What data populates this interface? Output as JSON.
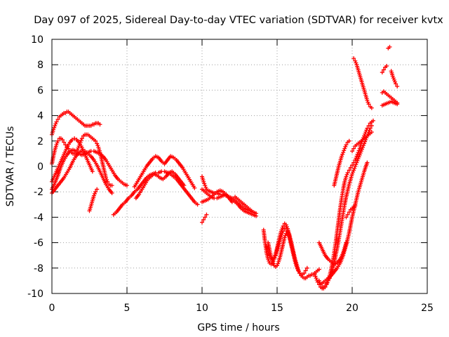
{
  "chart_data": {
    "type": "scatter",
    "title": "Day 097 of 2025, Sidereal Day-to-day VTEC variation (SDTVAR) for receiver kvtx",
    "xlabel": "GPS time / hours",
    "ylabel": "SDTVAR / TECUs",
    "xlim": [
      0,
      25
    ],
    "ylim": [
      -10,
      10
    ],
    "xticks": [
      0,
      5,
      10,
      15,
      20,
      25
    ],
    "yticks": [
      -10,
      -8,
      -6,
      -4,
      -2,
      0,
      2,
      4,
      6,
      8,
      10
    ],
    "grid": true,
    "marker": "+",
    "color": "#ff0000",
    "series": [
      {
        "x": [
          0.0,
          0.1,
          0.2,
          0.3,
          0.4,
          0.5,
          0.6,
          0.7,
          0.8,
          0.9,
          1.0,
          1.1,
          1.2,
          1.3,
          1.4,
          1.5,
          1.6,
          1.7,
          1.8,
          1.9,
          2.0,
          2.1,
          2.2,
          2.3,
          2.4,
          2.5,
          2.6,
          2.7,
          2.8,
          2.9,
          3.0,
          3.1,
          3.2
        ],
        "y": [
          2.5,
          2.9,
          3.2,
          3.5,
          3.7,
          3.9,
          4.0,
          4.1,
          4.2,
          4.2,
          4.3,
          4.3,
          4.2,
          4.1,
          4.0,
          3.9,
          3.8,
          3.7,
          3.6,
          3.5,
          3.4,
          3.3,
          3.2,
          3.2,
          3.2,
          3.2,
          3.2,
          3.3,
          3.3,
          3.4,
          3.4,
          3.4,
          3.3
        ]
      },
      {
        "x": [
          0.0,
          0.1,
          0.2,
          0.3,
          0.4,
          0.5,
          0.6,
          0.7,
          0.8,
          0.9,
          1.0,
          1.1,
          1.2,
          1.3,
          1.4,
          1.5,
          1.6,
          1.7,
          1.8,
          1.9,
          2.0,
          2.1,
          2.2,
          2.3,
          2.4,
          2.5,
          2.6,
          2.7,
          2.8,
          2.9,
          3.0,
          3.1,
          3.2,
          3.3,
          3.4,
          3.5,
          3.6,
          3.7,
          3.8,
          3.9,
          4.0
        ],
        "y": [
          0.2,
          0.8,
          1.3,
          1.7,
          2.0,
          2.2,
          2.2,
          2.1,
          1.9,
          1.7,
          1.5,
          1.4,
          1.2,
          1.1,
          1.0,
          1.0,
          1.1,
          1.3,
          1.6,
          1.9,
          2.2,
          2.4,
          2.5,
          2.5,
          2.5,
          2.4,
          2.3,
          2.2,
          2.1,
          2.0,
          1.8,
          1.5,
          1.1,
          0.6,
          0.1,
          -0.4,
          -0.9,
          -1.2,
          -1.4,
          -1.5,
          -1.5
        ]
      },
      {
        "x": [
          0.0,
          0.2,
          0.4,
          0.6,
          0.8,
          1.0,
          1.2,
          1.4,
          1.6,
          1.8,
          2.0,
          2.2,
          2.4,
          2.6,
          2.8,
          3.0,
          3.2,
          3.4,
          3.6,
          3.8,
          4.0,
          4.2,
          4.4,
          4.6,
          4.8,
          5.0
        ],
        "y": [
          -1.8,
          -1.3,
          -0.7,
          0.0,
          0.5,
          0.9,
          1.2,
          1.3,
          1.2,
          1.0,
          0.9,
          1.0,
          1.1,
          1.2,
          1.2,
          1.1,
          1.0,
          0.8,
          0.5,
          0.1,
          -0.3,
          -0.7,
          -1.0,
          -1.2,
          -1.4,
          -1.5
        ]
      },
      {
        "x": [
          0.0,
          0.2,
          0.4,
          0.6,
          0.8,
          1.0,
          1.2,
          1.4,
          1.6,
          1.8,
          2.0,
          2.2,
          2.4,
          2.6,
          2.8,
          3.0,
          3.2,
          3.4,
          3.6,
          3.8,
          4.0
        ],
        "y": [
          -2.1,
          -1.8,
          -1.5,
          -1.2,
          -0.9,
          -0.5,
          -0.1,
          0.4,
          0.8,
          1.1,
          1.2,
          1.2,
          1.0,
          0.8,
          0.5,
          0.1,
          -0.4,
          -0.9,
          -1.4,
          -1.8,
          -2.1
        ]
      },
      {
        "x": [
          2.5,
          2.6,
          2.7,
          2.8,
          2.9,
          3.0
        ],
        "y": [
          -3.5,
          -3.1,
          -2.7,
          -2.3,
          -2.0,
          -1.8
        ]
      },
      {
        "x": [
          0.0,
          0.15,
          0.3,
          0.45,
          0.6,
          0.75,
          0.9,
          1.05,
          1.2,
          1.35,
          1.5,
          1.65,
          1.8,
          1.95,
          2.1,
          2.25,
          2.4,
          2.55,
          2.7
        ],
        "y": [
          -1.2,
          -0.8,
          -0.4,
          0.0,
          0.4,
          0.8,
          1.2,
          1.6,
          1.9,
          2.1,
          2.2,
          2.1,
          1.9,
          1.6,
          1.2,
          0.8,
          0.4,
          0.0,
          -0.4
        ]
      },
      {
        "x": [
          4.1,
          4.3,
          4.5,
          4.7,
          4.9,
          5.1,
          5.3,
          5.5,
          5.7,
          5.9,
          6.1,
          6.3,
          6.5,
          6.7,
          6.9,
          7.1,
          7.3,
          7.5,
          7.7,
          7.9,
          8.1,
          8.3,
          8.5,
          8.7,
          8.9,
          9.1,
          9.3,
          9.5,
          9.7
        ],
        "y": [
          -3.8,
          -3.6,
          -3.3,
          -3.0,
          -2.8,
          -2.5,
          -2.3,
          -2.0,
          -1.8,
          -1.5,
          -1.2,
          -0.9,
          -0.7,
          -0.6,
          -0.5,
          -0.5,
          -0.4,
          -0.4,
          -0.5,
          -0.6,
          -0.8,
          -1.0,
          -1.3,
          -1.6,
          -1.9,
          -2.2,
          -2.5,
          -2.8,
          -3.0
        ]
      },
      {
        "x": [
          5.5,
          5.7,
          5.9,
          6.1,
          6.3,
          6.5,
          6.7,
          6.9,
          7.1,
          7.3,
          7.5,
          7.7,
          7.9,
          8.1,
          8.3,
          8.5,
          8.7,
          8.9,
          9.1,
          9.3,
          9.5
        ],
        "y": [
          -1.6,
          -1.2,
          -0.8,
          -0.4,
          0.0,
          0.3,
          0.6,
          0.8,
          0.7,
          0.4,
          0.2,
          0.5,
          0.8,
          0.7,
          0.5,
          0.2,
          -0.1,
          -0.5,
          -0.9,
          -1.3,
          -1.7
        ]
      },
      {
        "x": [
          5.6,
          5.8,
          6.0,
          6.2,
          6.4,
          6.6,
          6.8,
          7.0,
          7.2,
          7.4,
          7.6,
          7.8,
          8.0,
          8.2,
          8.4,
          8.6,
          8.8
        ],
        "y": [
          -2.5,
          -2.2,
          -1.8,
          -1.4,
          -1.0,
          -0.8,
          -0.6,
          -0.7,
          -0.9,
          -1.0,
          -0.8,
          -0.5,
          -0.4,
          -0.6,
          -0.9,
          -1.2,
          -1.5
        ]
      },
      {
        "x": [
          10.0,
          10.1,
          10.2,
          10.3,
          10.4,
          10.6,
          10.8,
          11.0,
          11.2,
          11.4,
          11.6,
          11.8,
          12.0,
          12.2,
          12.4,
          12.6,
          12.8,
          13.0,
          13.2,
          13.4,
          13.6
        ],
        "y": [
          -0.8,
          -1.2,
          -1.5,
          -1.8,
          -1.9,
          -2.0,
          -2.1,
          -2.1,
          -2.2,
          -2.2,
          -2.3,
          -2.4,
          -2.5,
          -2.7,
          -2.9,
          -3.1,
          -3.3,
          -3.4,
          -3.5,
          -3.6,
          -3.7
        ]
      },
      {
        "x": [
          10.0,
          10.2,
          10.4,
          10.6,
          10.8,
          11.0,
          11.2,
          11.4,
          11.6,
          11.8,
          12.0,
          12.2,
          12.4,
          12.6,
          12.8,
          13.0,
          13.2,
          13.4,
          13.6
        ],
        "y": [
          -1.8,
          -2.0,
          -2.2,
          -2.4,
          -2.5,
          -2.5,
          -2.4,
          -2.3,
          -2.3,
          -2.4,
          -2.6,
          -2.8,
          -3.0,
          -3.3,
          -3.5,
          -3.6,
          -3.7,
          -3.8,
          -3.9
        ]
      },
      {
        "x": [
          10.0,
          10.2,
          10.4,
          10.6,
          10.8,
          11.0,
          11.2,
          11.4,
          11.6,
          11.8,
          12.0
        ],
        "y": [
          -2.8,
          -2.7,
          -2.6,
          -2.4,
          -2.2,
          -2.0,
          -1.9,
          -2.0,
          -2.2,
          -2.5,
          -2.8
        ]
      },
      {
        "x": [
          12.2,
          12.4,
          12.6,
          12.8,
          13.0,
          13.2,
          13.4
        ],
        "y": [
          -2.4,
          -2.6,
          -2.8,
          -3.0,
          -3.2,
          -3.4,
          -3.6
        ]
      },
      {
        "x": [
          10.0,
          10.1,
          10.2,
          10.3
        ],
        "y": [
          -4.4,
          -4.2,
          -4.0,
          -3.8
        ]
      },
      {
        "x": [
          14.1,
          14.2,
          14.3,
          14.4,
          14.5,
          14.6,
          14.7,
          14.8,
          14.9,
          15.0,
          15.1,
          15.2,
          15.3,
          15.4,
          15.5,
          15.6,
          15.7,
          15.8,
          15.9,
          16.0,
          16.1,
          16.2,
          16.3,
          16.4,
          16.5,
          16.6,
          16.7,
          16.8,
          16.9,
          17.0,
          17.1,
          17.2,
          17.3,
          17.4,
          17.5,
          17.6,
          17.7,
          17.8
        ],
        "y": [
          -5.0,
          -6.0,
          -6.8,
          -7.3,
          -7.6,
          -7.7,
          -7.6,
          -7.3,
          -6.9,
          -6.4,
          -5.9,
          -5.4,
          -5.0,
          -4.7,
          -4.5,
          -4.6,
          -4.9,
          -5.3,
          -5.8,
          -6.3,
          -6.8,
          -7.3,
          -7.7,
          -8.1,
          -8.4,
          -8.6,
          -8.7,
          -8.8,
          -8.8,
          -8.7,
          -8.6,
          -8.6,
          -8.5,
          -8.5,
          -8.4,
          -8.3,
          -8.2,
          -8.1
        ]
      },
      {
        "x": [
          14.3,
          14.4,
          14.5,
          14.6,
          14.7,
          14.8,
          14.9,
          15.0,
          15.1,
          15.2,
          15.3,
          15.4,
          15.5,
          15.6,
          15.7,
          15.8,
          15.9,
          16.0,
          16.1,
          16.2,
          16.3,
          16.4,
          16.5,
          16.6,
          16.7,
          16.8,
          16.9,
          17.0
        ],
        "y": [
          -6.3,
          -6.7,
          -7.0,
          -7.2,
          -7.3,
          -7.2,
          -7.0,
          -6.6,
          -6.2,
          -5.8,
          -5.4,
          -5.1,
          -4.9,
          -4.9,
          -5.1,
          -5.5,
          -6.0,
          -6.5,
          -7.0,
          -7.5,
          -7.9,
          -8.2,
          -8.4,
          -8.5,
          -8.5,
          -8.4,
          -8.2,
          -8.0
        ]
      },
      {
        "x": [
          14.4,
          14.5,
          14.6,
          14.7,
          14.8,
          14.9,
          15.0,
          15.1,
          15.2,
          15.3,
          15.4,
          15.5,
          15.6,
          15.7,
          15.8,
          15.9,
          16.0
        ],
        "y": [
          -6.0,
          -6.6,
          -7.1,
          -7.5,
          -7.8,
          -7.9,
          -7.8,
          -7.5,
          -7.1,
          -6.6,
          -6.1,
          -5.6,
          -5.3,
          -5.2,
          -5.4,
          -5.8,
          -6.3
        ]
      },
      {
        "x": [
          17.5,
          17.6,
          17.7,
          17.8,
          17.9,
          18.0,
          18.1,
          18.2,
          18.3,
          18.4,
          18.5,
          18.6,
          18.7,
          18.8,
          18.9,
          19.0,
          19.1,
          19.2,
          19.3,
          19.4,
          19.5,
          19.6,
          19.7,
          19.8,
          19.9,
          20.0,
          20.1,
          20.2,
          20.3,
          20.4,
          20.5,
          20.6,
          20.7,
          20.8,
          20.9,
          21.0,
          21.1,
          21.2,
          21.3,
          21.4
        ],
        "y": [
          -8.5,
          -8.8,
          -9.1,
          -9.3,
          -9.5,
          -9.6,
          -9.6,
          -9.5,
          -9.3,
          -9.0,
          -8.6,
          -8.1,
          -7.5,
          -6.8,
          -6.0,
          -5.1,
          -4.2,
          -3.3,
          -2.5,
          -1.8,
          -1.2,
          -0.8,
          -0.5,
          -0.3,
          -0.1,
          0.1,
          0.3,
          0.5,
          0.8,
          1.1,
          1.4,
          1.8,
          2.1,
          2.4,
          2.7,
          3.0,
          3.2,
          3.4,
          3.5,
          3.6
        ]
      },
      {
        "x": [
          17.8,
          17.9,
          18.0,
          18.1,
          18.2,
          18.3,
          18.4,
          18.5,
          18.6,
          18.7,
          18.8,
          18.9,
          19.0,
          19.1,
          19.2,
          19.3,
          19.4,
          19.5,
          19.6,
          19.7,
          19.8,
          19.9,
          20.0,
          20.1,
          20.2,
          20.3,
          20.4,
          20.5,
          20.6,
          20.7,
          20.8,
          20.9,
          21.0,
          21.1,
          21.2,
          21.3
        ],
        "y": [
          -9.0,
          -9.3,
          -9.5,
          -9.5,
          -9.4,
          -9.2,
          -9.0,
          -8.8,
          -8.5,
          -8.1,
          -7.6,
          -7.0,
          -6.4,
          -5.8,
          -5.1,
          -4.4,
          -3.7,
          -3.0,
          -2.4,
          -1.9,
          -1.4,
          -1.0,
          -0.6,
          -0.3,
          0.0,
          0.3,
          0.6,
          0.9,
          1.2,
          1.5,
          1.8,
          2.1,
          2.4,
          2.7,
          3.0,
          3.2
        ]
      },
      {
        "x": [
          18.0,
          18.2,
          18.4,
          18.6,
          18.8,
          19.0,
          19.2,
          19.4,
          19.6,
          19.8,
          20.0,
          20.2,
          20.4,
          20.6,
          20.8,
          21.0
        ],
        "y": [
          -9.2,
          -9.0,
          -8.8,
          -8.6,
          -8.3,
          -8.0,
          -7.6,
          -7.0,
          -6.2,
          -5.2,
          -4.0,
          -3.0,
          -2.0,
          -1.2,
          -0.4,
          0.3
        ]
      },
      {
        "x": [
          17.8,
          18.0,
          18.2,
          18.4,
          18.6,
          18.8,
          19.0,
          19.2,
          19.4,
          19.6
        ],
        "y": [
          -6.0,
          -6.5,
          -7.0,
          -7.3,
          -7.5,
          -7.7,
          -7.6,
          -7.3,
          -6.8,
          -6.0
        ]
      },
      {
        "x": [
          18.8,
          18.9,
          19.0,
          19.1,
          19.2,
          19.3,
          19.4,
          19.5,
          19.6,
          19.7,
          19.8
        ],
        "y": [
          -1.5,
          -1.0,
          -0.5,
          0.0,
          0.4,
          0.8,
          1.1,
          1.4,
          1.7,
          1.9,
          2.0
        ]
      },
      {
        "x": [
          19.6,
          19.7,
          19.8,
          19.9,
          20.0,
          20.1,
          20.2
        ],
        "y": [
          -4.0,
          -3.8,
          -3.6,
          -3.4,
          -3.3,
          -3.2,
          -3.1
        ]
      },
      {
        "x": [
          20.0,
          20.1,
          20.2,
          20.3,
          20.4,
          20.5,
          20.6,
          20.7,
          20.8,
          20.9,
          21.0,
          21.1,
          21.2,
          21.3
        ],
        "y": [
          1.2,
          1.4,
          1.6,
          1.7,
          1.8,
          1.9,
          2.0,
          2.1,
          2.2,
          2.3,
          2.4,
          2.5,
          2.6,
          2.7
        ]
      },
      {
        "x": [
          20.1,
          20.2,
          20.3,
          20.4,
          20.5,
          20.6,
          20.7,
          20.8,
          20.9,
          21.0,
          21.1,
          21.2,
          21.3
        ],
        "y": [
          8.5,
          8.3,
          8.0,
          7.6,
          7.2,
          6.8,
          6.4,
          6.0,
          5.6,
          5.2,
          4.9,
          4.7,
          4.6
        ]
      },
      {
        "x": [
          22.0,
          22.1,
          22.2,
          22.3,
          22.4,
          22.5,
          22.6,
          22.7,
          22.8,
          22.9,
          23.0
        ],
        "y": [
          5.8,
          5.9,
          5.8,
          5.7,
          5.6,
          5.5,
          5.4,
          5.3,
          5.2,
          5.1,
          5.0
        ]
      },
      {
        "x": [
          22.0,
          22.2,
          22.4,
          22.6,
          22.8,
          23.0
        ],
        "y": [
          4.8,
          4.9,
          5.0,
          5.1,
          5.0,
          4.9
        ]
      },
      {
        "x": [
          22.0,
          22.1,
          22.2,
          22.3
        ],
        "y": [
          7.4,
          7.6,
          7.8,
          7.9
        ]
      },
      {
        "x": [
          22.6,
          22.7,
          22.8,
          22.9,
          23.0
        ],
        "y": [
          7.5,
          7.1,
          6.8,
          6.5,
          6.3
        ]
      },
      {
        "x": [
          22.4,
          22.5
        ],
        "y": [
          9.3,
          9.4
        ]
      }
    ]
  }
}
